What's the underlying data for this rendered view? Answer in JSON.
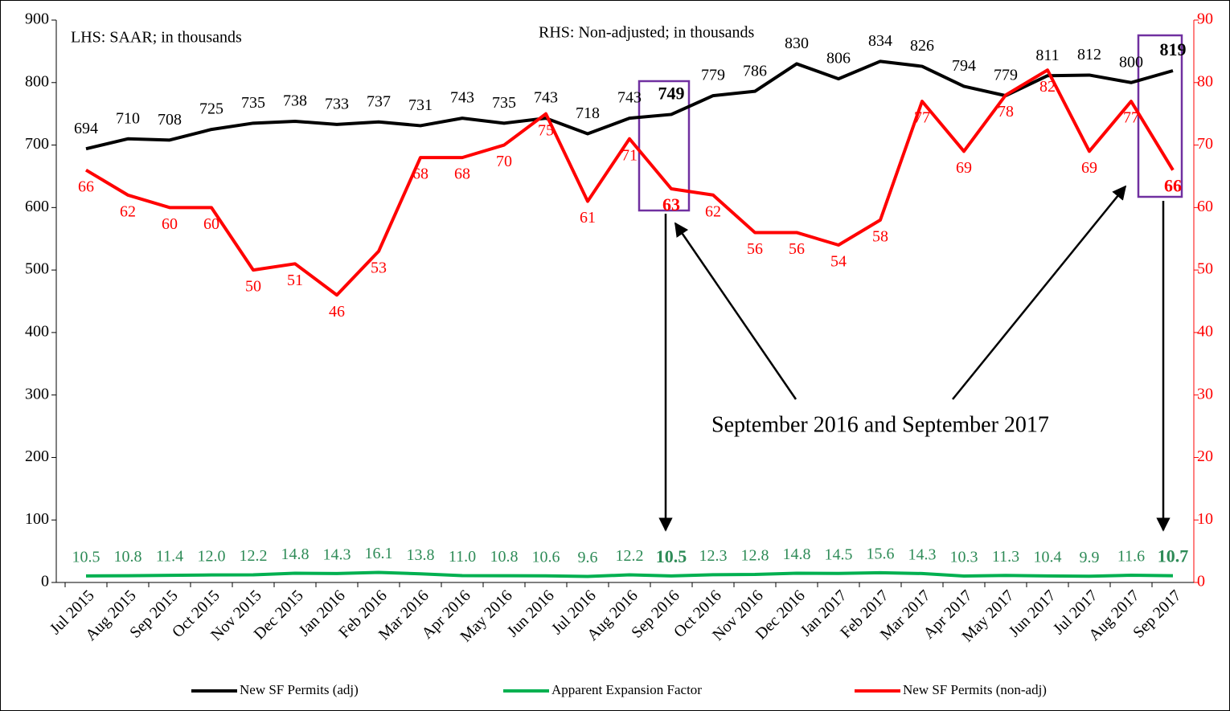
{
  "chart_data": {
    "type": "line",
    "annotations": [
      "LHS: SAAR; in thousands",
      "RHS: Non-adjusted; in thousands",
      "September 2016 and September 2017"
    ],
    "categories": [
      "Jul 2015",
      "Aug 2015",
      "Sep 2015",
      "Oct 2015",
      "Nov 2015",
      "Dec 2015",
      "Jan 2016",
      "Feb 2016",
      "Mar 2016",
      "Apr 2016",
      "May 2016",
      "Jun 2016",
      "Jul 2016",
      "Aug 2016",
      "Sep 2016",
      "Oct 2016",
      "Nov 2016",
      "Dec 2016",
      "Jan 2017",
      "Feb 2017",
      "Mar 2017",
      "Apr 2017",
      "May 2017",
      "Jun 2017",
      "Jul 2017",
      "Aug 2017",
      "Sep 2017"
    ],
    "series": [
      {
        "name": "New SF Permits (adj)",
        "color": "#000000",
        "axis": "y",
        "values": [
          694,
          710,
          708,
          725,
          735,
          738,
          733,
          737,
          731,
          743,
          735,
          743,
          718,
          743,
          749,
          779,
          786,
          830,
          806,
          834,
          826,
          794,
          779,
          811,
          812,
          800,
          819
        ]
      },
      {
        "name": "Apparent Expansion Factor",
        "color": "#00b050",
        "label_color": "#2e8b57",
        "axis": "y",
        "values": [
          10.5,
          10.8,
          11.4,
          12.0,
          12.2,
          14.8,
          14.3,
          16.1,
          13.8,
          11.0,
          10.8,
          10.6,
          9.6,
          12.2,
          10.5,
          12.3,
          12.8,
          14.8,
          14.5,
          15.6,
          14.3,
          10.3,
          11.3,
          10.4,
          9.9,
          11.6,
          10.7
        ],
        "value_labels": [
          "10.5",
          "10.8",
          "11.4",
          "12.0",
          "12.2",
          "14.8",
          "14.3",
          "16.1",
          "13.8",
          "11.0",
          "10.8",
          "10.6",
          "9.6",
          "12.2",
          "10.5",
          "12.3",
          "12.8",
          "14.8",
          "14.5",
          "15.6",
          "14.3",
          "10.3",
          "11.3",
          "10.4",
          "9.9",
          "11.6",
          "10.7"
        ]
      },
      {
        "name": "New SF Permits (non-adj)",
        "color": "#ff0000",
        "axis": "y2",
        "values": [
          66,
          62,
          60,
          60,
          50,
          51,
          46,
          53,
          68,
          68,
          70,
          75,
          61,
          71,
          63,
          62,
          56,
          56,
          54,
          58,
          77,
          69,
          78,
          82,
          69,
          77,
          66
        ]
      }
    ],
    "highlight": [
      14,
      26
    ],
    "ylim": [
      0,
      900
    ],
    "yticks": [
      0,
      100,
      200,
      300,
      400,
      500,
      600,
      700,
      800,
      900
    ],
    "y2lim": [
      0,
      90
    ],
    "y2ticks": [
      0,
      10,
      20,
      30,
      40,
      50,
      60,
      70,
      80,
      90
    ],
    "y2_color": "#ff0000",
    "legend": "bottom"
  }
}
